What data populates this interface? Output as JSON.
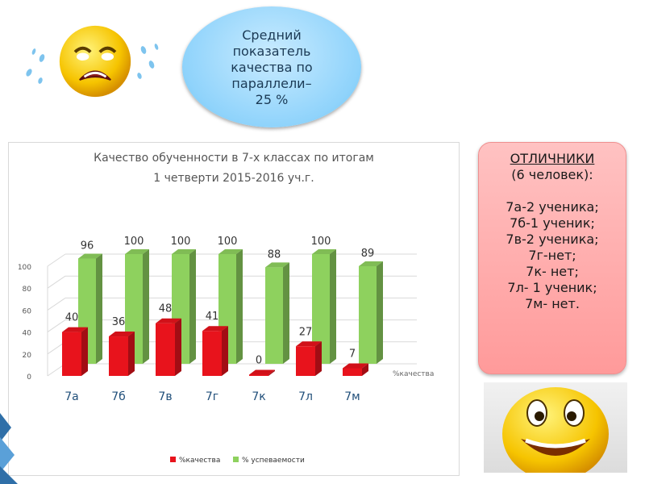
{
  "bubble": {
    "lines": [
      "Средний",
      "показатель",
      "качества по",
      "параллели–",
      "25 %"
    ]
  },
  "honors": {
    "title": "ОТЛИЧНИКИ",
    "subtitle": "(6 человек):",
    "items": [
      "7а-2 ученика;",
      "7б-1 ученик;",
      "7в-2 ученика;",
      "7г-нет;",
      "7к- нет;",
      "7л- 1 ученик;",
      "7м- нет."
    ]
  },
  "faces": {
    "sad": "crying-face-icon",
    "happy": "happy-face-icon"
  },
  "colors": {
    "quality": "#e8131c",
    "success": "#8ed15e",
    "bubble": "#8fd3fb",
    "honors": "#ff9a9a"
  },
  "chart_data": {
    "type": "bar",
    "title_lines": [
      "Качество обученности в 7-х классах по итогам",
      "1 четверти 2015-2016 уч.г."
    ],
    "categories": [
      "7а",
      "7б",
      "7в",
      "7г",
      "7к",
      "7л",
      "7м"
    ],
    "series": [
      {
        "name": "%качества",
        "values": [
          40,
          36,
          48,
          41,
          0,
          27,
          7
        ],
        "color": "#e8131c"
      },
      {
        "name": "% успеваемости",
        "values": [
          96,
          100,
          100,
          100,
          88,
          100,
          89
        ],
        "color": "#8ed15e"
      }
    ],
    "ylim": [
      0,
      100
    ],
    "yticks": [
      0,
      20,
      40,
      60,
      80,
      100
    ],
    "depth_axis_label": "%качества",
    "legend_position": "bottom",
    "grid": true,
    "style": "3d"
  }
}
